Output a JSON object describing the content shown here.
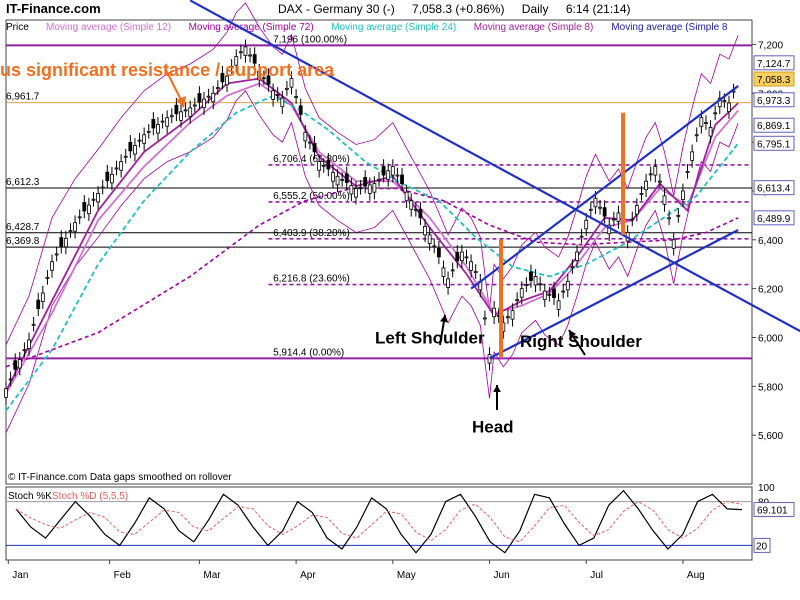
{
  "header": {
    "brand": "IT-Finance.com",
    "instrument": "DAX - Germany 30 (-)",
    "quote": "7,058.3 (+0.86%)",
    "period": "Daily",
    "time": "6:14 (21:14)"
  },
  "legend": [
    {
      "label": "Price",
      "color": "#000000"
    },
    {
      "label": "Moving average (Simple 12)",
      "color": "#d070d0"
    },
    {
      "label": "Moving average (Simple 72)",
      "color": "#a000a0"
    },
    {
      "label": "Moving average (Simple 24)",
      "color": "#20c0c0"
    },
    {
      "label": "Moving average (Simple 8)",
      "color": "#a020a0"
    },
    {
      "label": "Moving average (Simple 8",
      "color": "#2020a0"
    }
  ],
  "annotations": {
    "resistance": "us significant resistance / support area",
    "left_shoulder": "Left Shoulder",
    "head": "Head",
    "right_shoulder": "Right Shoulder",
    "footer": "© IT-Finance.com  Data gaps smoothed on rollover"
  },
  "chart_data": {
    "type": "line",
    "months": [
      "Jan",
      "Feb",
      "Mar",
      "Apr",
      "May",
      "Jun",
      "Jul",
      "Aug"
    ],
    "month_pos": [
      0.5,
      22.5,
      42,
      63,
      84,
      105,
      126,
      147
    ],
    "ylim": [
      5400,
      7300
    ],
    "y_ticks": [
      "7,200",
      "7,000",
      "6,800",
      "6,600",
      "6,400",
      "6,200",
      "6,000",
      "5,800",
      "5,600"
    ],
    "y_tick_values": [
      7200,
      7000,
      6800,
      6600,
      6400,
      6200,
      6000,
      5800,
      5600
    ],
    "price_series": [
      [
        0,
        5790
      ],
      [
        5,
        5990
      ],
      [
        10,
        6310
      ],
      [
        15,
        6470
      ],
      [
        20,
        6590
      ],
      [
        25,
        6720
      ],
      [
        30,
        6830
      ],
      [
        35,
        6900
      ],
      [
        40,
        6940
      ],
      [
        45,
        7000
      ],
      [
        48,
        7070
      ],
      [
        50,
        7150
      ],
      [
        52,
        7190
      ],
      [
        55,
        7090
      ],
      [
        58,
        7010
      ],
      [
        60,
        6980
      ],
      [
        62,
        7060
      ],
      [
        65,
        6840
      ],
      [
        68,
        6720
      ],
      [
        72,
        6660
      ],
      [
        76,
        6610
      ],
      [
        80,
        6630
      ],
      [
        84,
        6700
      ],
      [
        88,
        6560
      ],
      [
        92,
        6420
      ],
      [
        96,
        6240
      ],
      [
        99,
        6350
      ],
      [
        101,
        6310
      ],
      [
        103,
        6230
      ],
      [
        105,
        5930
      ],
      [
        106,
        6120
      ],
      [
        108,
        6060
      ],
      [
        110,
        6110
      ],
      [
        112,
        6200
      ],
      [
        115,
        6250
      ],
      [
        117,
        6190
      ],
      [
        120,
        6150
      ],
      [
        122,
        6230
      ],
      [
        124,
        6350
      ],
      [
        126,
        6480
      ],
      [
        128,
        6570
      ],
      [
        131,
        6460
      ],
      [
        133,
        6510
      ],
      [
        135,
        6430
      ],
      [
        137,
        6540
      ],
      [
        139,
        6640
      ],
      [
        141,
        6700
      ],
      [
        143,
        6580
      ],
      [
        145,
        6400
      ],
      [
        147,
        6600
      ],
      [
        149,
        6760
      ],
      [
        151,
        6900
      ],
      [
        153,
        6860
      ],
      [
        155,
        6980
      ],
      [
        157,
        6960
      ],
      [
        159,
        7058.3
      ]
    ],
    "series": [
      {
        "name": "Moving average (Simple 12)",
        "color": "#d070d0",
        "values": [
          [
            0,
            5770
          ],
          [
            10,
            6100
          ],
          [
            20,
            6480
          ],
          [
            30,
            6700
          ],
          [
            40,
            6880
          ],
          [
            48,
            6990
          ],
          [
            55,
            7040
          ],
          [
            62,
            6950
          ],
          [
            68,
            6760
          ],
          [
            76,
            6640
          ],
          [
            84,
            6640
          ],
          [
            92,
            6490
          ],
          [
            100,
            6290
          ],
          [
            106,
            6100
          ],
          [
            112,
            6130
          ],
          [
            118,
            6180
          ],
          [
            124,
            6300
          ],
          [
            130,
            6450
          ],
          [
            136,
            6480
          ],
          [
            142,
            6610
          ],
          [
            148,
            6540
          ],
          [
            154,
            6820
          ],
          [
            159,
            6930
          ]
        ]
      },
      {
        "name": "Moving average (Simple 8)",
        "color": "#a020a0",
        "values": [
          [
            0,
            5780
          ],
          [
            10,
            6150
          ],
          [
            20,
            6520
          ],
          [
            30,
            6760
          ],
          [
            40,
            6900
          ],
          [
            48,
            7040
          ],
          [
            55,
            7060
          ],
          [
            62,
            6960
          ],
          [
            68,
            6740
          ],
          [
            76,
            6620
          ],
          [
            84,
            6660
          ],
          [
            92,
            6450
          ],
          [
            100,
            6260
          ],
          [
            106,
            6090
          ],
          [
            112,
            6150
          ],
          [
            118,
            6190
          ],
          [
            124,
            6330
          ],
          [
            130,
            6490
          ],
          [
            136,
            6480
          ],
          [
            142,
            6630
          ],
          [
            148,
            6520
          ],
          [
            154,
            6870
          ],
          [
            159,
            6960
          ]
        ]
      },
      {
        "name": "Moving average (Simple 24)",
        "color": "#20c0c0",
        "values": [
          [
            0,
            5700
          ],
          [
            10,
            5950
          ],
          [
            20,
            6300
          ],
          [
            30,
            6560
          ],
          [
            40,
            6760
          ],
          [
            50,
            6920
          ],
          [
            58,
            6990
          ],
          [
            64,
            6930
          ],
          [
            70,
            6850
          ],
          [
            78,
            6720
          ],
          [
            86,
            6630
          ],
          [
            94,
            6560
          ],
          [
            102,
            6410
          ],
          [
            110,
            6290
          ],
          [
            118,
            6250
          ],
          [
            126,
            6300
          ],
          [
            134,
            6380
          ],
          [
            142,
            6480
          ],
          [
            150,
            6580
          ],
          [
            159,
            6795
          ]
        ]
      },
      {
        "name": "Moving average (Simple 72)",
        "color": "#a000a0",
        "values": [
          [
            0,
            5880
          ],
          [
            20,
            6020
          ],
          [
            40,
            6250
          ],
          [
            55,
            6460
          ],
          [
            65,
            6560
          ],
          [
            75,
            6610
          ],
          [
            85,
            6610
          ],
          [
            95,
            6560
          ],
          [
            105,
            6460
          ],
          [
            115,
            6390
          ],
          [
            125,
            6380
          ],
          [
            135,
            6390
          ],
          [
            145,
            6400
          ],
          [
            152,
            6430
          ],
          [
            159,
            6490
          ]
        ]
      }
    ],
    "fibonacci": [
      {
        "label": "7,196 (100.00%)",
        "value": 7196
      },
      {
        "label": "6,706.4 (61.80%)",
        "value": 6706.4
      },
      {
        "label": "6,555.2 (50.00%)",
        "value": 6555.2
      },
      {
        "label": "6,403.9 (38.20%)",
        "value": 6403.9
      },
      {
        "label": "6,216.8 (23.60%)",
        "value": 6216.8
      },
      {
        "label": "5,914.4 (0.00%)",
        "value": 5914.4
      }
    ],
    "levels_left": [
      {
        "label": "6,961.7",
        "value": 6961.7
      },
      {
        "label": "6,612.3",
        "value": 6612.3
      },
      {
        "label": "6,428.7",
        "value": 6428.7
      },
      {
        "label": "6,369.8",
        "value": 6369.8
      }
    ],
    "price_tags": [
      {
        "label": "7,124.7",
        "value": 7124.7
      },
      {
        "label": "7,058.3",
        "value": 7058.3
      },
      {
        "label": "6,973.3",
        "value": 6973.3
      },
      {
        "label": "6,869.1",
        "value": 6869.1
      },
      {
        "label": "6,795.1",
        "value": 6795.1
      },
      {
        "label": "6,613.4",
        "value": 6613.4
      },
      {
        "label": "6,489.9",
        "value": 6489.9
      }
    ],
    "trendlines": [
      {
        "from": [
          40,
          7380
        ],
        "to": [
          175,
          6000
        ]
      },
      {
        "from": [
          101,
          6200
        ],
        "to": [
          159,
          7030
        ]
      },
      {
        "from": [
          105,
          5915
        ],
        "to": [
          159,
          6440
        ]
      }
    ],
    "stochastic": {
      "label": "Stoch %K",
      "label2": "Stoch %D (5,5,5)",
      "ylim": [
        0,
        100
      ],
      "ticks": [
        "100",
        "80"
      ],
      "tick_values": [
        100,
        80
      ],
      "current_label": "69.101",
      "current_value": 69.101,
      "low_label": "20",
      "low_value": 20,
      "k_values": [
        70,
        45,
        30,
        55,
        80,
        60,
        35,
        20,
        50,
        85,
        70,
        40,
        25,
        55,
        90,
        75,
        45,
        20,
        40,
        80,
        65,
        30,
        15,
        45,
        85,
        70,
        35,
        10,
        35,
        80,
        90,
        60,
        25,
        10,
        40,
        90,
        85,
        50,
        20,
        30,
        75,
        95,
        70,
        40,
        15,
        35,
        80,
        90,
        70,
        69
      ]
    }
  }
}
